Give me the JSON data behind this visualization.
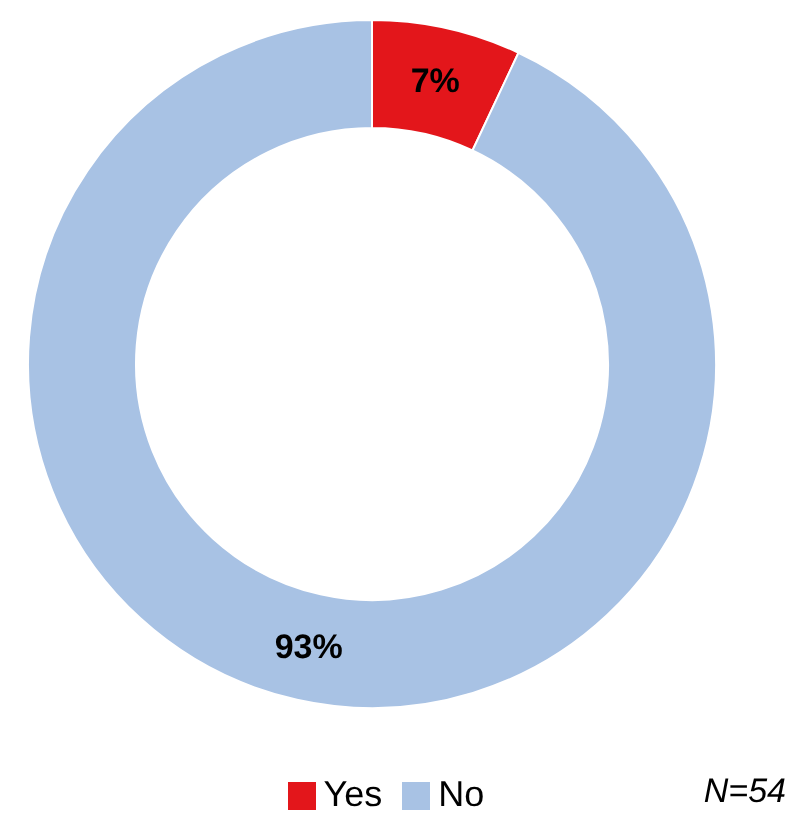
{
  "chart_data": {
    "type": "donut",
    "categories": [
      "Yes",
      "No"
    ],
    "values": [
      7,
      93
    ],
    "colors": [
      "#e3161b",
      "#a8c2e4"
    ],
    "value_labels": [
      "7%",
      "93%"
    ],
    "legend": "bottom",
    "annotations": [
      "N=54"
    ]
  }
}
